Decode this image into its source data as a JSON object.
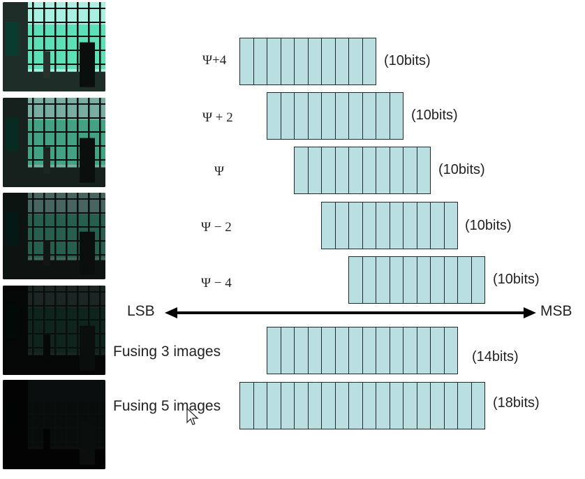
{
  "thumbnails": [
    {
      "name": "exposure-thumb-1",
      "brightness": 1.0
    },
    {
      "name": "exposure-thumb-2",
      "brightness": 0.72
    },
    {
      "name": "exposure-thumb-3",
      "brightness": 0.42
    },
    {
      "name": "exposure-thumb-4",
      "brightness": 0.16
    },
    {
      "name": "exposure-thumb-5",
      "brightness": 0.06
    }
  ],
  "rows": [
    {
      "label": "Ψ+4",
      "bits": "(10bits)",
      "cells": 10
    },
    {
      "label": "Ψ + 2",
      "bits": "(10bits)",
      "cells": 10
    },
    {
      "label": "Ψ",
      "bits": "(10bits)",
      "cells": 10
    },
    {
      "label": "Ψ − 2",
      "bits": "(10bits)",
      "cells": 10
    },
    {
      "label": "Ψ − 4",
      "bits": "(10bits)",
      "cells": 10
    }
  ],
  "axis": {
    "left": "LSB",
    "right": "MSB"
  },
  "fused": [
    {
      "label": "Fusing 3 images",
      "bits": "(14bits)",
      "cells": 14
    },
    {
      "label": "Fusing 5 images",
      "bits": "(18bits)",
      "cells": 18
    }
  ],
  "colors": {
    "cell_fill": "#b9dfe1",
    "cell_border": "#1e2a2e",
    "thumb_tint": "#5de0b8"
  }
}
